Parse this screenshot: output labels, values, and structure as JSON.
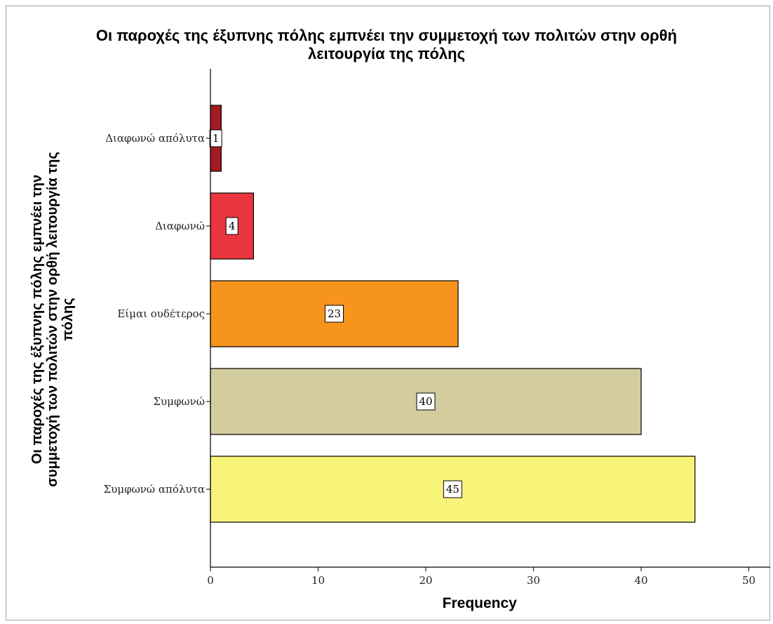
{
  "chart_data": {
    "type": "bar",
    "orientation": "horizontal",
    "title_lines": [
      "Οι παροχές της έξυπνης πόλης εμπνέει την συμμετοχή των πολιτών στην ορθή",
      "λειτουργία της πόλης"
    ],
    "ylabel_lines": [
      "Οι παροχές της έξυπνης πόλης εμπνέει την",
      "συμμετοχή των πολιτών στην ορθή λειτουργία της",
      "πόλης"
    ],
    "xlabel": "Frequency",
    "categories": [
      "Διαφωνώ απόλυτα",
      "Διαφωνώ",
      "Είμαι ουδέτερος",
      "Συμφωνώ",
      "Συμφωνώ απόλυτα"
    ],
    "values": [
      1,
      4,
      23,
      40,
      45
    ],
    "data_labels": [
      "1",
      "4",
      "23",
      "40",
      "45"
    ],
    "colors": [
      "#a31b22",
      "#e8363c",
      "#f7941d",
      "#d3cc9e",
      "#f8f47a"
    ],
    "xlim": [
      0,
      52
    ],
    "x_ticks": [
      0,
      10,
      20,
      30,
      40,
      50
    ],
    "grid": false,
    "legend": "none"
  }
}
